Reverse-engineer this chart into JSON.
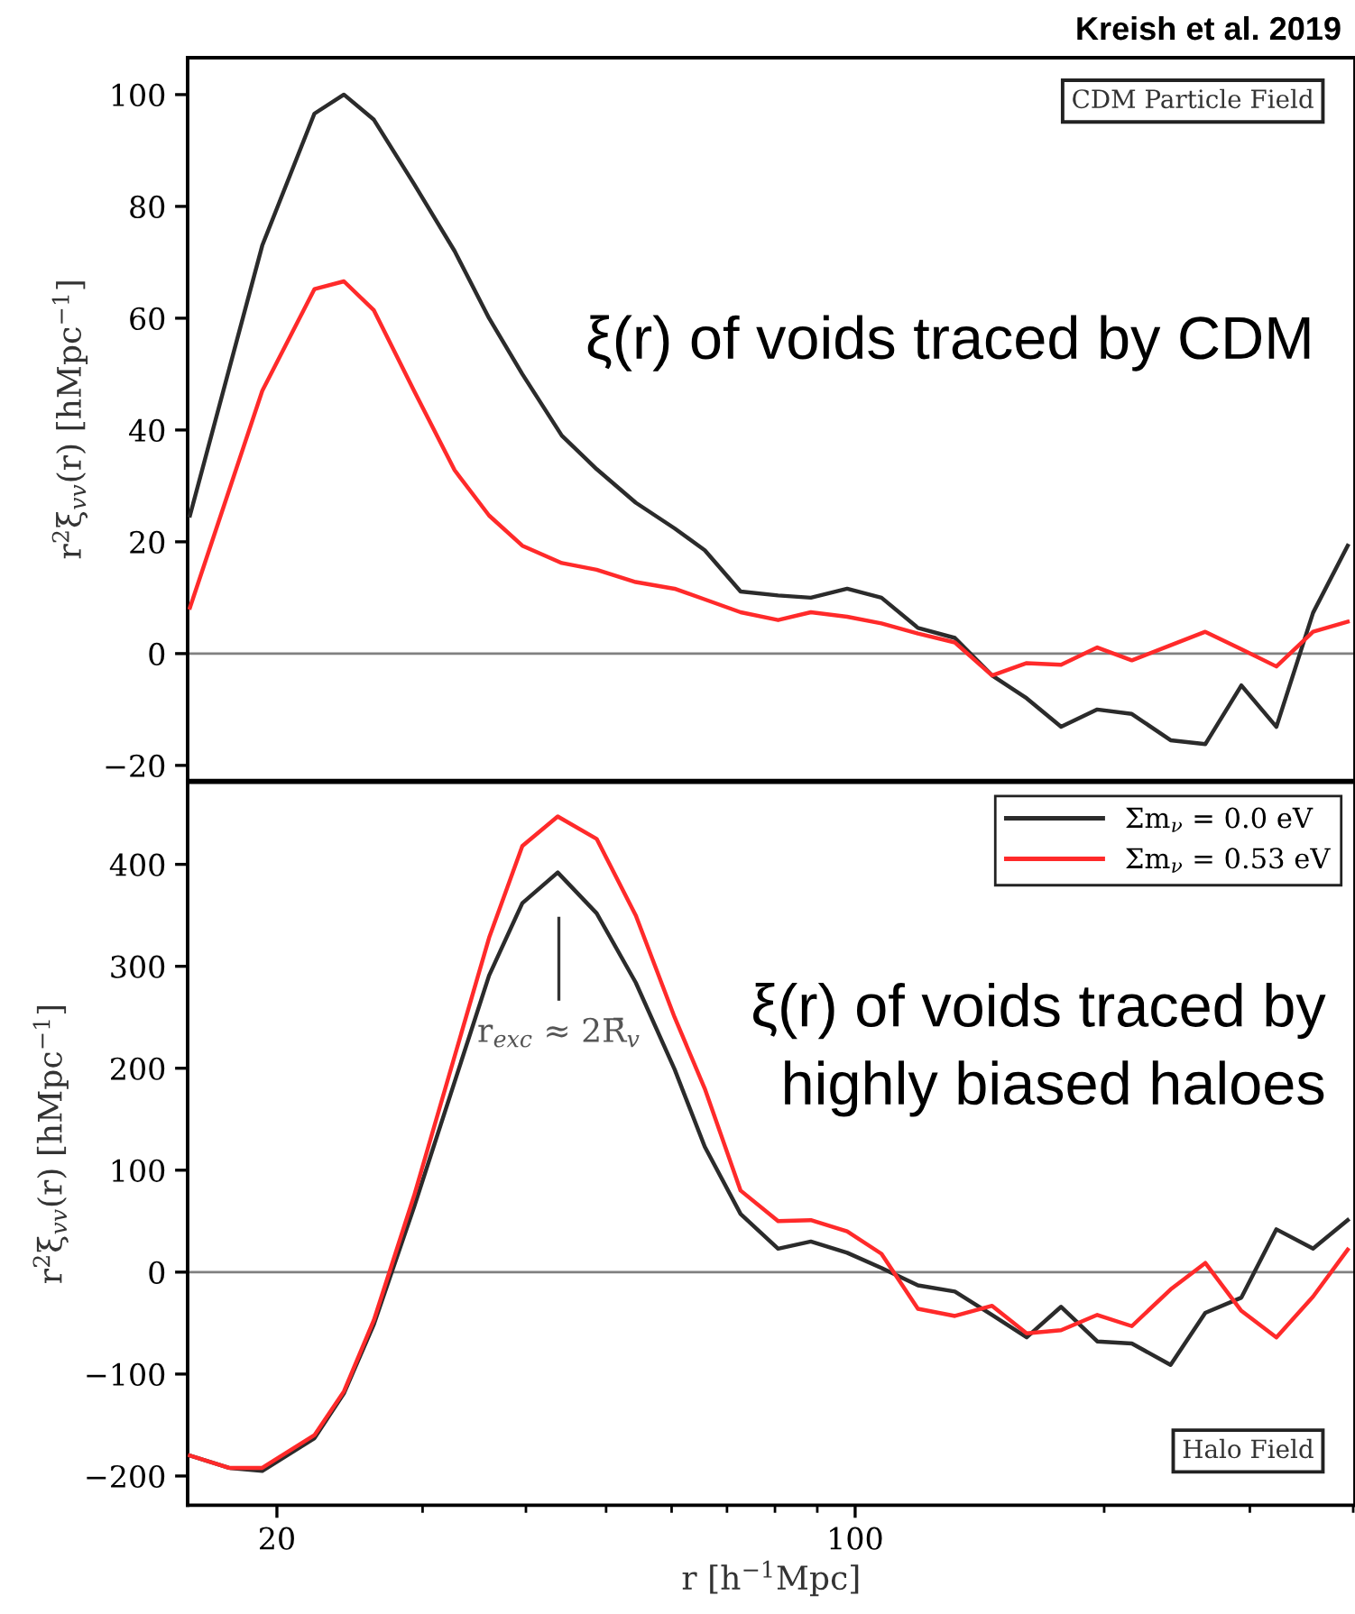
{
  "chart_data": [
    {
      "type": "line",
      "log": "x",
      "xlim": [
        15.6,
        402
      ],
      "xticks": [
        20,
        100
      ],
      "ylim": [
        -22.7,
        106.6
      ],
      "yticks": [
        {
          "value": -20,
          "label": "−20"
        },
        0,
        20,
        40,
        60,
        80,
        100
      ],
      "tick_labels": "y",
      "ylabel": "r$^{2}$ξ$_{vv}$(r) [hMpc$^{−1}$]",
      "ref_lines": [
        {
          "axis": "y",
          "value": 0,
          "color": "#808080"
        }
      ],
      "annotations": [
        "Kreish et al. 2019",
        "CDM Particle Field",
        "ξ(r) of voids traced by CDM"
      ],
      "series": [
        {
          "color": "#2b2b2b",
          "x": [
            15.7,
            19.2,
            22.2,
            24.1,
            26.2,
            29.3,
            32.8,
            36.1,
            39.6,
            44.2,
            48.7,
            54.3,
            60.5,
            65.8,
            72.7,
            80.7,
            88.4,
            97.8,
            107.6,
            119.1,
            132,
            146.4,
            161.2,
            177.4,
            196.2,
            216,
            240.6,
            265,
            293,
            323,
            357.7,
            393.9
          ],
          "values": [
            24.7,
            73,
            96.6,
            100,
            95.5,
            84,
            72,
            60,
            50,
            39,
            33,
            27,
            22.4,
            18.5,
            11.1,
            10.4,
            10,
            11.6,
            10,
            4.6,
            2.8,
            -3.9,
            -8,
            -13.1,
            -10,
            -10.8,
            -15.5,
            -16.2,
            -5.7,
            -13.1,
            7.3,
            19.3
          ]
        },
        {
          "color": "#ff2a2a",
          "x": [
            15.7,
            19.2,
            22.2,
            24.1,
            26.2,
            29.3,
            32.8,
            36.1,
            39.6,
            44.2,
            48.7,
            54.3,
            60.5,
            65.8,
            72.7,
            80.7,
            88.4,
            97.8,
            107.6,
            119.1,
            132,
            146.4,
            161.2,
            177.4,
            196.2,
            216,
            240.6,
            265,
            293,
            323,
            357.7,
            393.9
          ],
          "values": [
            8.2,
            47,
            65.2,
            66.6,
            61.4,
            47,
            32.8,
            24.7,
            19.3,
            16.2,
            15,
            12.8,
            11.6,
            9.7,
            7.4,
            6,
            7.4,
            6.6,
            5.4,
            3.6,
            2,
            -3.9,
            -1.7,
            -2,
            1.1,
            -1.2,
            1.5,
            3.9,
            0.8,
            -2.3,
            3.9,
            5.7
          ]
        }
      ]
    },
    {
      "type": "line",
      "log": "x",
      "xlim": [
        15.6,
        402
      ],
      "xticks": [
        20,
        100
      ],
      "ylim": [
        -228.7,
        480.5
      ],
      "yticks": [
        {
          "value": -200,
          "label": "−200"
        },
        {
          "value": -100,
          "label": "−100"
        },
        0,
        100,
        200,
        300,
        400
      ],
      "xlabel": "r [h$^{−1}$Mpc]",
      "ylabel": "r$^{2}$ξ$_{vv}$(r) [hMpc$^{−1}$]",
      "legend": "top right",
      "ref_lines": [
        {
          "axis": "y",
          "value": 0,
          "color": "#808080"
        }
      ],
      "annotations": [
        "r$_{exc}$ ≈ 2R̄$_{v}$",
        "Halo Field",
        "ξ(r) of voids traced by\nhighly biased haloes"
      ],
      "series": [
        {
          "name": "Σm$_{ν}$ = 0.0 eV",
          "color": "#2b2b2b",
          "x": [
            15.7,
            17.5,
            19.2,
            22.2,
            24.1,
            26.2,
            29.3,
            36.1,
            39.6,
            43.7,
            48.7,
            54.3,
            60.5,
            65.8,
            72.7,
            80.7,
            88.4,
            97.8,
            107.6,
            119.1,
            132,
            146.4,
            161.2,
            177.4,
            196.2,
            216,
            240.6,
            265,
            293,
            323,
            357.7,
            393.9
          ],
          "values": [
            -180,
            -192,
            -195,
            -163,
            -119,
            -51,
            64,
            291,
            362,
            392,
            352,
            284,
            199,
            123,
            57,
            23,
            30,
            19,
            4,
            -13,
            -19,
            -42,
            -64,
            -34,
            -68,
            -70,
            -91,
            -40,
            -25,
            42,
            23,
            51
          ]
        },
        {
          "name": "Σm$_{ν}$ = 0.53 eV",
          "color": "#ff2a2a",
          "x": [
            15.7,
            17.5,
            19.2,
            22.2,
            24.1,
            26.2,
            29.3,
            36.1,
            39.6,
            43.7,
            48.7,
            54.3,
            60.5,
            65.8,
            72.7,
            80.7,
            88.4,
            97.8,
            107.6,
            119.1,
            132,
            146.4,
            161.2,
            177.4,
            196.2,
            216,
            240.6,
            265,
            293,
            323,
            357.7,
            393.9
          ],
          "values": [
            -180,
            -192,
            -192,
            -160,
            -117,
            -47,
            75,
            328,
            418,
            447,
            425,
            350,
            250,
            180,
            80,
            50,
            51,
            40,
            18,
            -36,
            -43,
            -33,
            -60,
            -57,
            -42,
            -53,
            -17,
            9,
            -38,
            -64,
            -24,
            22
          ]
        }
      ]
    }
  ]
}
